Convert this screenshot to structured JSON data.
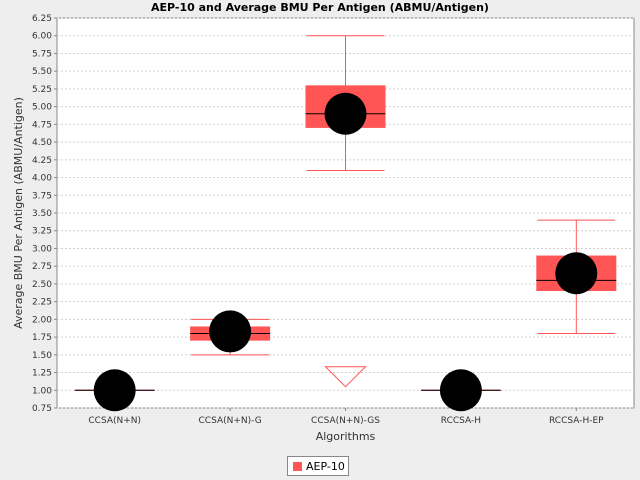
{
  "chart_data": {
    "type": "box",
    "title": "AEP-10 and Average BMU Per Antigen (ABMU/Antigen)",
    "xlabel": "Algorithms",
    "ylabel": "Average BMU Per Antigen (ABMU/Antigen)",
    "ylim": [
      0.75,
      6.25
    ],
    "y_ticks": [
      "0.75",
      "1.00",
      "1.25",
      "1.50",
      "1.75",
      "2.00",
      "2.25",
      "2.50",
      "2.75",
      "3.00",
      "3.25",
      "3.50",
      "3.75",
      "4.00",
      "4.25",
      "4.50",
      "4.75",
      "5.00",
      "5.25",
      "5.50",
      "5.75",
      "6.00",
      "6.25"
    ],
    "categories": [
      "CCSA(N+N)",
      "CCSA(N+N)-G",
      "CCSA(N+N)-GS",
      "RCCSA-H",
      "RCCSA-H-EP"
    ],
    "grid": true,
    "legend_position": "bottom",
    "series": [
      {
        "name": "AEP-10",
        "color": "#ff5555",
        "boxes": [
          {
            "min": 1.0,
            "q1": 1.0,
            "median": 1.0,
            "q3": 1.0,
            "max": 1.0,
            "mean": 1.0
          },
          {
            "min": 1.5,
            "q1": 1.7,
            "median": 1.8,
            "q3": 1.9,
            "max": 2.0,
            "mean": 1.83
          },
          {
            "min": 4.1,
            "q1": 4.7,
            "median": 4.9,
            "q3": 5.3,
            "max": 6.0,
            "mean": 4.9,
            "outlier_below": 1.05
          },
          {
            "min": 1.0,
            "q1": 1.0,
            "median": 1.0,
            "q3": 1.0,
            "max": 1.0,
            "mean": 1.0
          },
          {
            "min": 1.8,
            "q1": 2.4,
            "median": 2.55,
            "q3": 2.9,
            "max": 3.4,
            "mean": 2.65
          }
        ]
      }
    ]
  }
}
